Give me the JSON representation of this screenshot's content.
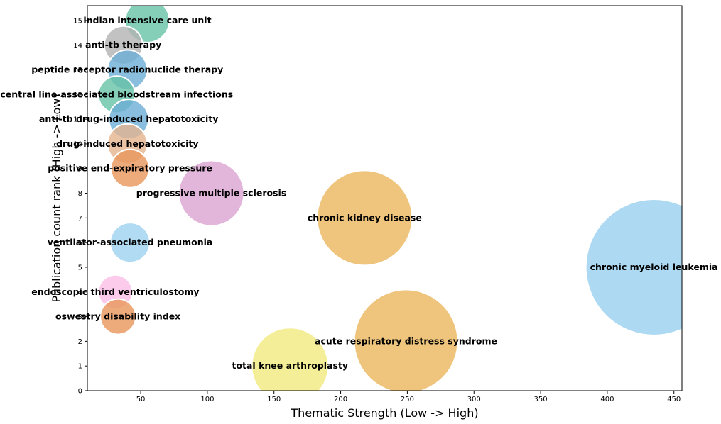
{
  "chart_data": {
    "type": "scatter",
    "title": "",
    "xlabel": "Thematic Strength (Low -> High)",
    "ylabel": "Publication count rank (High -> Low)",
    "xlim": [
      10,
      456
    ],
    "ylim": [
      0,
      15.6
    ],
    "xticks": [
      50,
      100,
      150,
      200,
      250,
      300,
      350,
      400,
      450
    ],
    "yticks": [
      0,
      1,
      2,
      3,
      4,
      5,
      6,
      7,
      8,
      9,
      10,
      11,
      12,
      13,
      14,
      15
    ],
    "grid": false,
    "points": [
      {
        "label": "indian intensive care unit",
        "x": 55,
        "y": 15,
        "size": 31,
        "color": "#66c2a5"
      },
      {
        "label": "anti-tb therapy",
        "x": 37,
        "y": 14,
        "size": 27,
        "color": "#b3b3b3"
      },
      {
        "label": "peptide receptor radionuclide therapy",
        "x": 40,
        "y": 13,
        "size": 28,
        "color": "#6baed6"
      },
      {
        "label": "central line-associated bloodstream infections",
        "x": 32,
        "y": 12,
        "size": 26,
        "color": "#66c2a5"
      },
      {
        "label": "anti-tb drug-induced hepatotoxicity",
        "x": 41,
        "y": 11,
        "size": 28,
        "color": "#6baed6"
      },
      {
        "label": "drug-induced hepatotoxicity",
        "x": 40,
        "y": 10,
        "size": 28,
        "color": "#e5b48e"
      },
      {
        "label": "positive end-expiratory pressure",
        "x": 42,
        "y": 9,
        "size": 27,
        "color": "#e8965a"
      },
      {
        "label": "progressive multiple sclerosis",
        "x": 103,
        "y": 8,
        "size": 46,
        "color": "#dba2d2"
      },
      {
        "label": "chronic kidney disease",
        "x": 218,
        "y": 7,
        "size": 67,
        "color": "#ebb65c"
      },
      {
        "label": "ventilator-associated pneumonia",
        "x": 42,
        "y": 6,
        "size": 28,
        "color": "#9dd2f0"
      },
      {
        "label": "chronic myeloid leukemia",
        "x": 435,
        "y": 5,
        "size": 96,
        "color": "#99cfef"
      },
      {
        "label": "endoscopic third ventriculostomy",
        "x": 31,
        "y": 4,
        "size": 24,
        "color": "#fbbde5"
      },
      {
        "label": "oswestry disability index",
        "x": 33,
        "y": 3,
        "size": 25,
        "color": "#e8965a"
      },
      {
        "label": "acute respiratory distress syndrome",
        "x": 249,
        "y": 2,
        "size": 73,
        "color": "#ebb65c"
      },
      {
        "label": "total knee arthroplasty",
        "x": 162,
        "y": 1,
        "size": 54,
        "color": "#f3ea7e"
      }
    ]
  }
}
